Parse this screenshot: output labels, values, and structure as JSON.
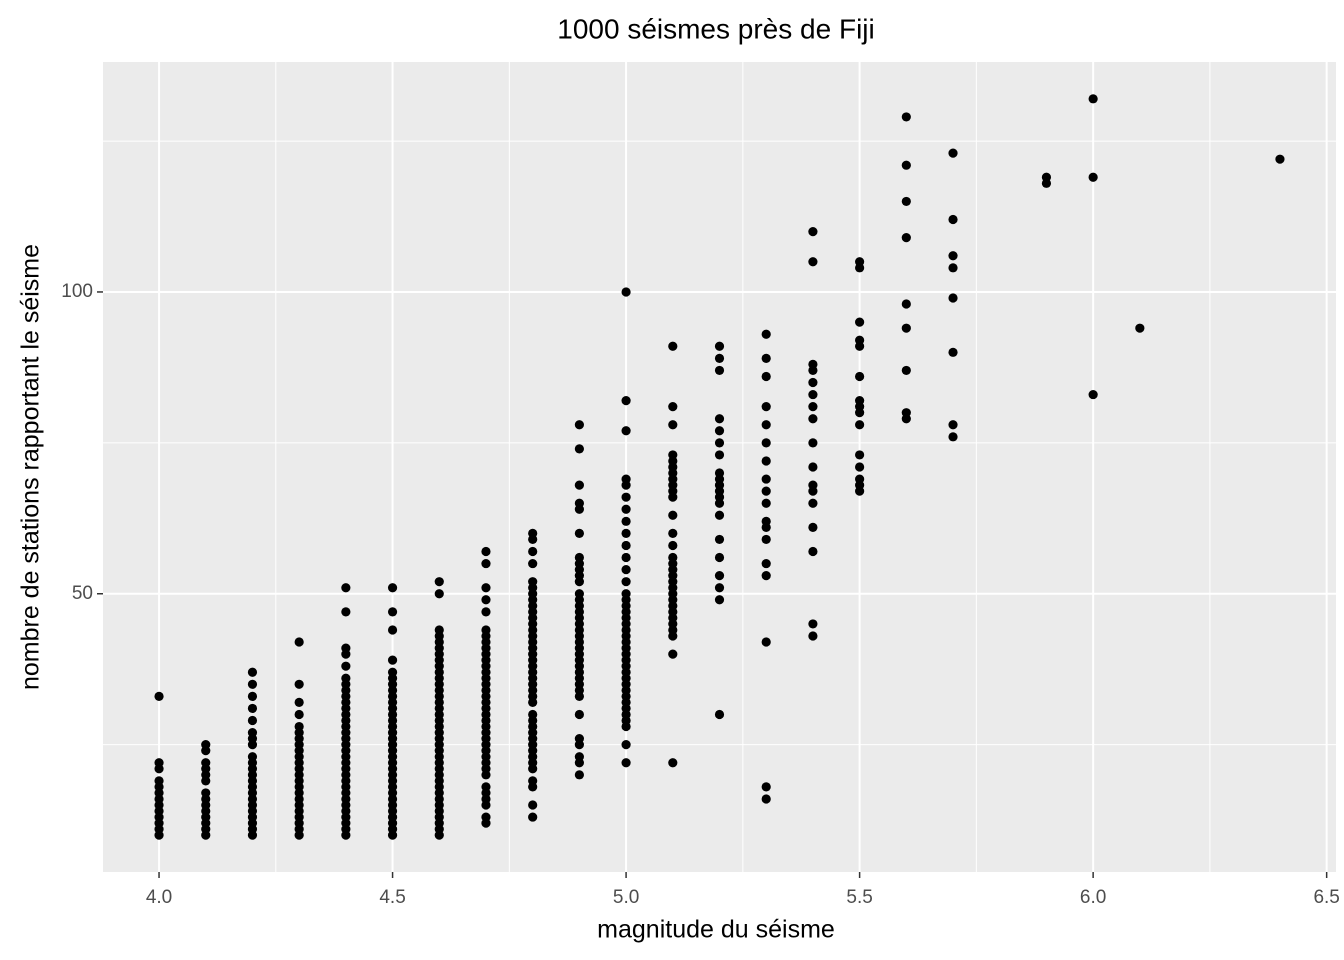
{
  "chart_data": {
    "type": "scatter",
    "title": "1000 séismes près de Fiji",
    "xlabel": "magnitude du séisme",
    "ylabel": "nombre de stations rapportant le séisme",
    "color": "#000000",
    "xlim": [
      3.88,
      6.52
    ],
    "ylim": [
      3.9,
      138.1
    ],
    "xticks": [
      {
        "value": 4,
        "label": "4.0"
      },
      4.5,
      {
        "value": 5,
        "label": "5.0"
      },
      5.5,
      {
        "value": 6,
        "label": "6.0"
      },
      6.5
    ],
    "yticks": [
      50,
      100
    ],
    "x_minor_grid": [
      4.25,
      4.75,
      5.25,
      5.75,
      6.25
    ],
    "y_minor_grid": [
      25,
      75,
      125
    ],
    "grid": true,
    "x": [
      4,
      4,
      4,
      4,
      4,
      4,
      4,
      4,
      4,
      4,
      4,
      4,
      4,
      4.1,
      4.1,
      4.1,
      4.1,
      4.1,
      4.1,
      4.1,
      4.1,
      4.1,
      4.1,
      4.1,
      4.1,
      4.1,
      4.1,
      4.2,
      4.2,
      4.2,
      4.2,
      4.2,
      4.2,
      4.2,
      4.2,
      4.2,
      4.2,
      4.2,
      4.2,
      4.2,
      4.2,
      4.2,
      4.2,
      4.2,
      4.2,
      4.2,
      4.2,
      4.2,
      4.2,
      4.3,
      4.3,
      4.3,
      4.3,
      4.3,
      4.3,
      4.3,
      4.3,
      4.3,
      4.3,
      4.3,
      4.3,
      4.3,
      4.3,
      4.3,
      4.3,
      4.3,
      4.3,
      4.3,
      4.3,
      4.3,
      4.3,
      4.3,
      4.4,
      4.4,
      4.4,
      4.4,
      4.4,
      4.4,
      4.4,
      4.4,
      4.4,
      4.4,
      4.4,
      4.4,
      4.4,
      4.4,
      4.4,
      4.4,
      4.4,
      4.4,
      4.4,
      4.4,
      4.4,
      4.4,
      4.4,
      4.4,
      4.4,
      4.4,
      4.4,
      4.4,
      4.4,
      4.4,
      4.4,
      4.4,
      4.5,
      4.5,
      4.5,
      4.5,
      4.5,
      4.5,
      4.5,
      4.5,
      4.5,
      4.5,
      4.5,
      4.5,
      4.5,
      4.5,
      4.5,
      4.5,
      4.5,
      4.5,
      4.5,
      4.5,
      4.5,
      4.5,
      4.5,
      4.5,
      4.5,
      4.5,
      4.5,
      4.5,
      4.5,
      4.5,
      4.5,
      4.5,
      4.6,
      4.6,
      4.6,
      4.6,
      4.6,
      4.6,
      4.6,
      4.6,
      4.6,
      4.6,
      4.6,
      4.6,
      4.6,
      4.6,
      4.6,
      4.6,
      4.6,
      4.6,
      4.6,
      4.6,
      4.6,
      4.6,
      4.6,
      4.6,
      4.6,
      4.6,
      4.6,
      4.6,
      4.6,
      4.6,
      4.6,
      4.6,
      4.6,
      4.6,
      4.6,
      4.6,
      4.6,
      4.7,
      4.7,
      4.7,
      4.7,
      4.7,
      4.7,
      4.7,
      4.7,
      4.7,
      4.7,
      4.7,
      4.7,
      4.7,
      4.7,
      4.7,
      4.7,
      4.7,
      4.7,
      4.7,
      4.7,
      4.7,
      4.7,
      4.7,
      4.7,
      4.7,
      4.7,
      4.7,
      4.7,
      4.7,
      4.7,
      4.7,
      4.7,
      4.7,
      4.7,
      4.7,
      4.7,
      4.8,
      4.8,
      4.8,
      4.8,
      4.8,
      4.8,
      4.8,
      4.8,
      4.8,
      4.8,
      4.8,
      4.8,
      4.8,
      4.8,
      4.8,
      4.8,
      4.8,
      4.8,
      4.8,
      4.8,
      4.8,
      4.8,
      4.8,
      4.8,
      4.8,
      4.8,
      4.8,
      4.8,
      4.8,
      4.8,
      4.8,
      4.8,
      4.8,
      4.8,
      4.8,
      4.8,
      4.8,
      4.8,
      4.8,
      4.9,
      4.9,
      4.9,
      4.9,
      4.9,
      4.9,
      4.9,
      4.9,
      4.9,
      4.9,
      4.9,
      4.9,
      4.9,
      4.9,
      4.9,
      4.9,
      4.9,
      4.9,
      4.9,
      4.9,
      4.9,
      4.9,
      4.9,
      4.9,
      4.9,
      4.9,
      4.9,
      4.9,
      4.9,
      4.9,
      4.9,
      4.9,
      4.9,
      4.9,
      4.9,
      5,
      5,
      5,
      5,
      5,
      5,
      5,
      5,
      5,
      5,
      5,
      5,
      5,
      5,
      5,
      5,
      5,
      5,
      5,
      5,
      5,
      5,
      5,
      5,
      5,
      5,
      5,
      5,
      5,
      5,
      5,
      5,
      5,
      5,
      5,
      5,
      5,
      5,
      5.1,
      5.1,
      5.1,
      5.1,
      5.1,
      5.1,
      5.1,
      5.1,
      5.1,
      5.1,
      5.1,
      5.1,
      5.1,
      5.1,
      5.1,
      5.1,
      5.1,
      5.1,
      5.1,
      5.1,
      5.1,
      5.1,
      5.1,
      5.1,
      5.1,
      5.1,
      5.1,
      5.1,
      5.1,
      5.1,
      5.2,
      5.2,
      5.2,
      5.2,
      5.2,
      5.2,
      5.2,
      5.2,
      5.2,
      5.2,
      5.2,
      5.2,
      5.2,
      5.2,
      5.2,
      5.2,
      5.2,
      5.2,
      5.2,
      5.2,
      5.3,
      5.3,
      5.3,
      5.3,
      5.3,
      5.3,
      5.3,
      5.3,
      5.3,
      5.3,
      5.3,
      5.3,
      5.3,
      5.3,
      5.3,
      5.3,
      5.3,
      5.3,
      5.4,
      5.4,
      5.4,
      5.4,
      5.4,
      5.4,
      5.4,
      5.4,
      5.4,
      5.4,
      5.4,
      5.4,
      5.4,
      5.4,
      5.4,
      5.4,
      5.4,
      5.5,
      5.5,
      5.5,
      5.5,
      5.5,
      5.5,
      5.5,
      5.5,
      5.5,
      5.5,
      5.5,
      5.5,
      5.5,
      5.5,
      5.5,
      5.6,
      5.6,
      5.6,
      5.6,
      5.6,
      5.6,
      5.6,
      5.6,
      5.6,
      5.7,
      5.7,
      5.7,
      5.7,
      5.7,
      5.7,
      5.7,
      5.7,
      5.9,
      5.9,
      6,
      6,
      6,
      6.1,
      6.4
    ],
    "values": [
      10,
      11,
      12,
      13,
      14,
      15,
      16,
      17,
      18,
      19,
      21,
      22,
      33,
      10,
      11,
      12,
      13,
      14,
      15,
      16,
      17,
      19,
      20,
      21,
      22,
      24,
      25,
      10,
      11,
      12,
      13,
      14,
      15,
      16,
      17,
      18,
      19,
      20,
      21,
      22,
      23,
      25,
      26,
      27,
      29,
      31,
      33,
      35,
      37,
      10,
      11,
      12,
      13,
      14,
      15,
      16,
      17,
      18,
      19,
      20,
      21,
      22,
      23,
      24,
      25,
      26,
      27,
      28,
      30,
      32,
      35,
      42,
      10,
      11,
      12,
      13,
      14,
      15,
      16,
      17,
      18,
      19,
      20,
      21,
      22,
      23,
      24,
      25,
      26,
      27,
      28,
      29,
      30,
      31,
      32,
      33,
      34,
      35,
      36,
      38,
      40,
      41,
      47,
      51,
      10,
      11,
      12,
      13,
      14,
      15,
      16,
      17,
      18,
      19,
      20,
      21,
      22,
      23,
      24,
      25,
      26,
      27,
      28,
      29,
      30,
      31,
      32,
      33,
      34,
      35,
      36,
      37,
      39,
      44,
      47,
      51,
      10,
      11,
      12,
      13,
      14,
      15,
      16,
      17,
      18,
      19,
      20,
      21,
      22,
      23,
      24,
      25,
      26,
      27,
      28,
      29,
      30,
      31,
      32,
      33,
      34,
      35,
      36,
      37,
      38,
      39,
      40,
      41,
      42,
      43,
      44,
      50,
      52,
      12,
      13,
      15,
      16,
      17,
      18,
      20,
      21,
      22,
      23,
      24,
      25,
      26,
      27,
      28,
      29,
      30,
      31,
      32,
      33,
      34,
      35,
      36,
      37,
      38,
      39,
      40,
      41,
      42,
      43,
      44,
      47,
      49,
      51,
      55,
      57,
      13,
      15,
      18,
      19,
      21,
      22,
      23,
      24,
      25,
      26,
      27,
      28,
      29,
      30,
      32,
      33,
      34,
      35,
      36,
      37,
      38,
      39,
      40,
      41,
      42,
      43,
      44,
      45,
      46,
      47,
      48,
      49,
      50,
      51,
      52,
      55,
      57,
      59,
      60,
      20,
      22,
      23,
      25,
      26,
      30,
      33,
      34,
      35,
      36,
      37,
      38,
      39,
      40,
      41,
      42,
      43,
      44,
      45,
      46,
      47,
      48,
      49,
      50,
      52,
      53,
      54,
      55,
      56,
      60,
      64,
      65,
      68,
      74,
      78,
      22,
      25,
      28,
      29,
      30,
      31,
      32,
      33,
      34,
      35,
      36,
      37,
      38,
      39,
      40,
      41,
      42,
      43,
      44,
      45,
      46,
      47,
      48,
      49,
      50,
      52,
      54,
      56,
      58,
      60,
      62,
      64,
      66,
      68,
      69,
      77,
      82,
      100,
      22,
      40,
      43,
      44,
      45,
      46,
      47,
      48,
      49,
      50,
      51,
      52,
      53,
      54,
      55,
      56,
      58,
      60,
      63,
      66,
      67,
      68,
      69,
      70,
      71,
      72,
      73,
      78,
      81,
      91,
      30,
      49,
      51,
      53,
      56,
      59,
      63,
      65,
      66,
      67,
      68,
      69,
      70,
      73,
      75,
      77,
      79,
      87,
      89,
      91,
      16,
      18,
      42,
      53,
      55,
      59,
      61,
      62,
      65,
      67,
      69,
      72,
      75,
      78,
      81,
      86,
      89,
      93,
      43,
      45,
      57,
      61,
      65,
      67,
      68,
      71,
      75,
      79,
      81,
      83,
      85,
      87,
      88,
      105,
      110,
      67,
      68,
      69,
      71,
      73,
      78,
      80,
      81,
      82,
      86,
      91,
      92,
      95,
      104,
      105,
      79,
      80,
      87,
      94,
      98,
      109,
      115,
      121,
      129,
      76,
      78,
      90,
      99,
      104,
      106,
      112,
      123,
      118,
      119,
      83,
      119,
      132,
      94,
      122
    ]
  }
}
